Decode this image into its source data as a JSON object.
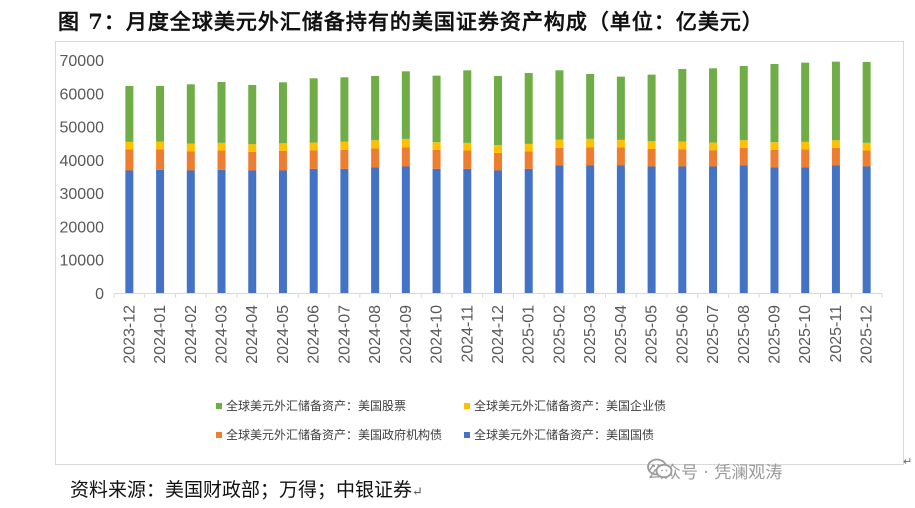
{
  "title": "图 7：月度全球美元外汇储备持有的美国证券资产构成（单位：亿美元）",
  "source": "资料来源：美国财政部；万得；中银证券",
  "return_mark": "↵",
  "watermark": {
    "text": "公众号 · 凭澜观涛",
    "icon": "wechat-icon"
  },
  "colors": {
    "treasury": "#4472C4",
    "agency": "#ED7D31",
    "corporate": "#FFC000",
    "equity": "#70AD47"
  },
  "chart_data": {
    "type": "bar",
    "stacked": true,
    "title": "",
    "xlabel": "",
    "ylabel": "",
    "ylim": [
      0,
      70000
    ],
    "yticks": [
      0,
      10000,
      20000,
      30000,
      40000,
      50000,
      60000,
      70000
    ],
    "grid": false,
    "legend_position": "bottom",
    "categories": [
      "2023-12",
      "2024-01",
      "2024-02",
      "2024-03",
      "2024-04",
      "2024-05",
      "2024-06",
      "2024-07",
      "2024-08",
      "2024-09",
      "2024-10",
      "2024-11",
      "2024-12",
      "2025-01",
      "2025-02",
      "2025-03",
      "2025-04",
      "2025-05",
      "2025-06",
      "2025-07",
      "2025-08",
      "2025-09",
      "2025-10",
      "2025-11",
      "2025-12"
    ],
    "series": [
      {
        "name": "全球美元外汇储备资产：美国国债",
        "key": "treasury",
        "values": [
          36800,
          37000,
          36800,
          37000,
          36800,
          36800,
          37300,
          37300,
          37800,
          38000,
          37300,
          37300,
          36800,
          37300,
          38300,
          38300,
          38300,
          38000,
          38000,
          38000,
          38300,
          37800,
          37800,
          38300,
          38000
        ]
      },
      {
        "name": "全球美元外汇储备资产：美国政府机构债",
        "key": "agency",
        "values": [
          6300,
          6200,
          5800,
          5800,
          5600,
          5900,
          5600,
          5700,
          5600,
          5800,
          5700,
          5500,
          5300,
          5200,
          5300,
          5500,
          5400,
          5300,
          5200,
          4900,
          5300,
          5200,
          5300,
          5300,
          4800
        ]
      },
      {
        "name": "全球美元外汇储备资产：美国企业债",
        "key": "corporate",
        "values": [
          2300,
          2300,
          2300,
          2300,
          2300,
          2300,
          2300,
          2500,
          2500,
          2500,
          2300,
          2300,
          2300,
          2300,
          2500,
          2500,
          2300,
          2300,
          2300,
          2300,
          2300,
          2300,
          2300,
          2300,
          2300
        ]
      },
      {
        "name": "全球美元外汇储备资产：美国股票",
        "key": "equity",
        "values": [
          16800,
          16700,
          17800,
          18300,
          17800,
          18300,
          19300,
          19300,
          19300,
          20300,
          20000,
          21800,
          20800,
          21300,
          20800,
          19500,
          19000,
          20000,
          21800,
          22300,
          22300,
          23500,
          23800,
          23600,
          24300
        ]
      }
    ],
    "legend_order": [
      "equity",
      "corporate",
      "agency",
      "treasury"
    ]
  }
}
